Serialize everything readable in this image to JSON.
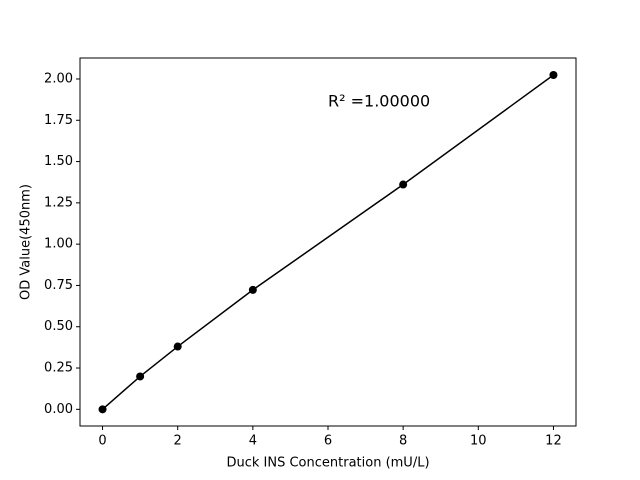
{
  "chart_data": {
    "type": "line",
    "x_label": "Duck INS Concentration (mU/L)",
    "y_label": "OD Value(450nm)",
    "annotation": "R² =1.00000",
    "x": [
      0,
      1,
      2,
      4,
      8,
      12
    ],
    "series": [
      {
        "color": "#000000",
        "values": [
          0,
          0.199,
          0.38,
          0.723,
          1.361,
          2.024
        ]
      }
    ],
    "markers": true,
    "xlim": [
      -0.6,
      12.6
    ],
    "xticks": [
      0,
      2,
      4,
      6,
      8,
      10,
      12
    ],
    "ylim": [
      -0.101,
      2.127
    ],
    "yticks": [
      {
        "value": 0,
        "label": "0.00"
      },
      {
        "value": 0.25,
        "label": "0.25"
      },
      {
        "value": 0.5,
        "label": "0.50"
      },
      {
        "value": 0.75,
        "label": "0.75"
      },
      {
        "value": 1,
        "label": "1.00"
      },
      {
        "value": 1.25,
        "label": "1.25"
      },
      {
        "value": 1.5,
        "label": "1.50"
      },
      {
        "value": 1.75,
        "label": "1.75"
      },
      {
        "value": 2,
        "label": "2.00"
      }
    ]
  }
}
